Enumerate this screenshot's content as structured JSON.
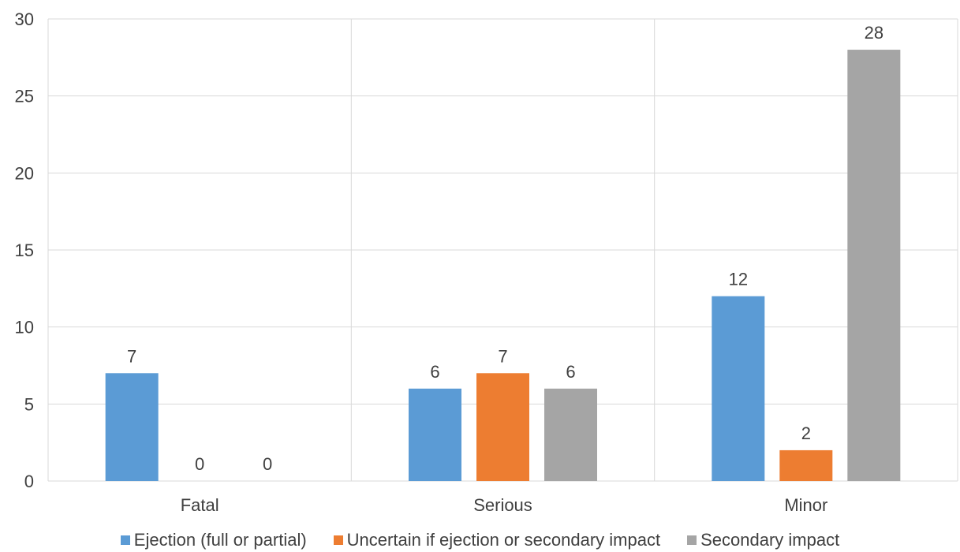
{
  "chart_data": {
    "type": "bar",
    "categories": [
      "Fatal",
      "Serious",
      "Minor"
    ],
    "series": [
      {
        "name": "Ejection (full or partial)",
        "values": [
          7,
          6,
          12
        ],
        "color": "#5B9BD5"
      },
      {
        "name": "Uncertain if ejection or secondary impact",
        "values": [
          0,
          7,
          2
        ],
        "color": "#ED7D31"
      },
      {
        "name": "Secondary impact",
        "values": [
          0,
          6,
          28
        ],
        "color": "#A5A5A5"
      }
    ],
    "ylim": [
      0,
      30
    ],
    "yticks": [
      0,
      5,
      10,
      15,
      20,
      25,
      30
    ],
    "grid": true,
    "data_labels": true,
    "legend_position": "bottom",
    "title": "",
    "xlabel": "",
    "ylabel": ""
  }
}
